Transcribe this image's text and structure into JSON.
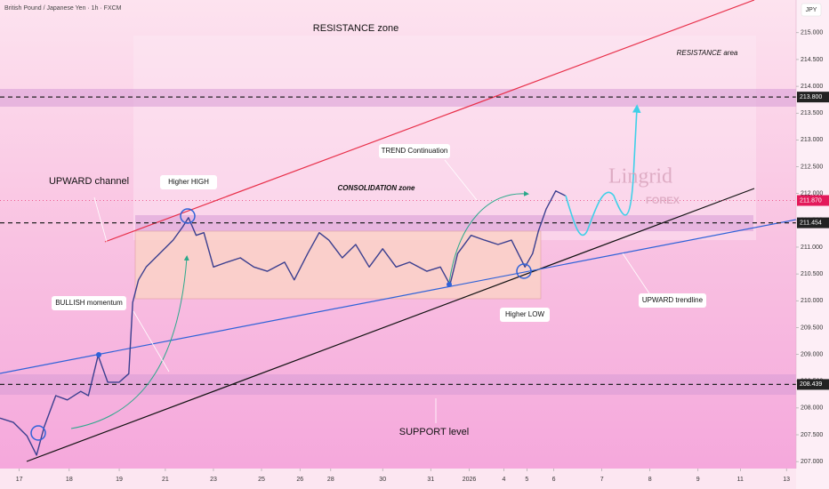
{
  "chart_data": {
    "type": "line",
    "title": "British Pound / Japanese Yen · 1h · FXCM",
    "currency": "JPY",
    "watermark": [
      "Lingrid",
      "FOREX"
    ],
    "annotations": [
      "RESISTANCE zone",
      "RESISTANCE area",
      "UPWARD channel",
      "Higher HIGH",
      "CONSOLIDATION zone",
      "TREND Continuation",
      "BULLISH momentum",
      "UPWARD trendline",
      "Higher LOW",
      "SUPPORT level"
    ],
    "color": "#3b3f8f",
    "x": [
      0,
      7,
      14,
      19,
      23,
      29,
      35,
      42,
      46,
      51,
      56,
      62,
      67,
      69,
      72,
      76,
      83,
      90,
      95,
      98,
      102,
      106,
      111,
      118,
      125,
      132,
      139,
      148,
      153,
      160,
      166,
      171,
      178,
      185,
      192,
      199,
      206,
      213,
      222,
      229,
      234,
      238,
      245,
      252,
      259,
      266,
      273,
      277,
      280,
      284,
      289,
      294
    ],
    "values": [
      207.81,
      207.73,
      207.48,
      207.12,
      207.65,
      208.23,
      208.15,
      208.31,
      208.23,
      208.98,
      208.48,
      208.48,
      208.64,
      209.97,
      210.39,
      210.63,
      210.88,
      211.13,
      211.38,
      211.55,
      211.22,
      211.27,
      210.63,
      210.72,
      210.8,
      210.63,
      210.55,
      210.72,
      210.39,
      210.88,
      211.27,
      211.13,
      210.8,
      211.05,
      210.63,
      210.97,
      210.63,
      210.72,
      210.55,
      210.63,
      210.3,
      210.88,
      211.22,
      211.13,
      211.05,
      211.13,
      210.63,
      210.88,
      211.3,
      211.71,
      212.05,
      211.96
    ],
    "xlim": [
      0,
      414
    ],
    "xticks": [
      {
        "value": 10,
        "label": "17"
      },
      {
        "value": 36,
        "label": "18"
      },
      {
        "value": 62,
        "label": "19"
      },
      {
        "value": 86,
        "label": "21"
      },
      {
        "value": 111,
        "label": "23"
      },
      {
        "value": 136,
        "label": "25"
      },
      {
        "value": 156,
        "label": "26"
      },
      {
        "value": 172,
        "label": "28"
      },
      {
        "value": 199,
        "label": "30"
      },
      {
        "value": 224,
        "label": "31"
      },
      {
        "value": 244,
        "label": "2026"
      },
      {
        "value": 262,
        "label": "4"
      },
      {
        "value": 274,
        "label": "5"
      },
      {
        "value": 288,
        "label": "6"
      },
      {
        "value": 313,
        "label": "7"
      },
      {
        "value": 338,
        "label": "8"
      },
      {
        "value": 363,
        "label": "9"
      },
      {
        "value": 385,
        "label": "11"
      },
      {
        "value": 409,
        "label": "13"
      }
    ],
    "ylim": [
      206.87,
      215.61
    ],
    "yticks": [
      {
        "value": 207,
        "label": "207.000"
      },
      {
        "value": 207.5,
        "label": "207.500"
      },
      {
        "value": 208,
        "label": "208.000"
      },
      {
        "value": 208.5,
        "label": "208.500"
      },
      {
        "value": 209,
        "label": "209.000"
      },
      {
        "value": 209.5,
        "label": "209.500"
      },
      {
        "value": 210,
        "label": "210.000"
      },
      {
        "value": 210.5,
        "label": "210.500"
      },
      {
        "value": 211,
        "label": "211.000"
      },
      {
        "value": 211.5,
        "label": "211.500"
      },
      {
        "value": 212,
        "label": "212.000"
      },
      {
        "value": 212.5,
        "label": "212.500"
      },
      {
        "value": 213,
        "label": "213.000"
      },
      {
        "value": 213.5,
        "label": "213.500"
      },
      {
        "value": 214,
        "label": "214.000"
      },
      {
        "value": 214.5,
        "label": "214.500"
      },
      {
        "value": 215,
        "label": "215.000"
      }
    ],
    "levels": [
      {
        "value": 213.8,
        "label": "213.800",
        "color": "#222222",
        "dashed": true
      },
      {
        "value": 211.87,
        "label": "211.870",
        "color": "#e3195a",
        "dashed": false
      },
      {
        "value": 211.454,
        "label": "211.454",
        "color": "#222222",
        "dashed": true
      },
      {
        "value": 208.439,
        "label": "208.439",
        "color": "#222222",
        "dashed": true
      }
    ]
  }
}
